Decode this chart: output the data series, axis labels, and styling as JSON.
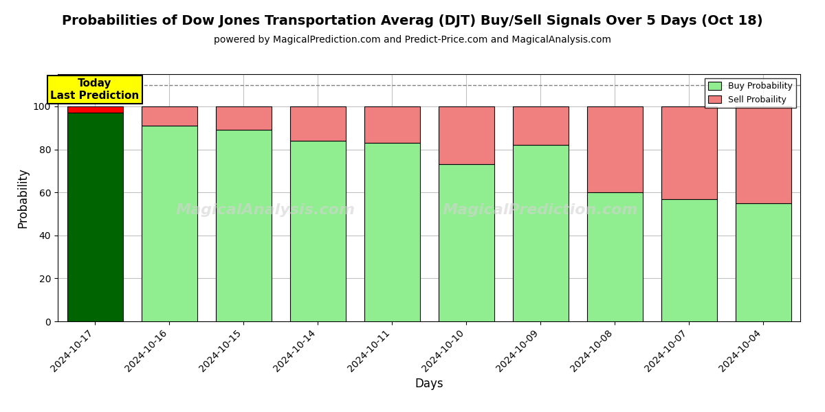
{
  "title": "Probabilities of Dow Jones Transportation Averag (DJT) Buy/Sell Signals Over 5 Days (Oct 18)",
  "subtitle": "powered by MagicalPrediction.com and Predict-Price.com and MagicalAnalysis.com",
  "xlabel": "Days",
  "ylabel": "Probability",
  "watermark1": "MagicalAnalysis.com",
  "watermark2": "MagicalPrediction.com",
  "dates": [
    "2024-10-17",
    "2024-10-16",
    "2024-10-15",
    "2024-10-14",
    "2024-10-11",
    "2024-10-10",
    "2024-10-09",
    "2024-10-08",
    "2024-10-07",
    "2024-10-04"
  ],
  "buy_values": [
    97,
    91,
    89,
    84,
    83,
    73,
    82,
    60,
    57,
    55
  ],
  "sell_values": [
    3,
    9,
    11,
    16,
    17,
    27,
    18,
    40,
    43,
    45
  ],
  "today_bar_index": 0,
  "today_bar_buy_color": "#006400",
  "today_bar_sell_color": "#FF0000",
  "normal_buy_color": "#90EE90",
  "normal_sell_color": "#F08080",
  "dashed_line_y": 110,
  "ylim": [
    0,
    115
  ],
  "yticks": [
    0,
    20,
    40,
    60,
    80,
    100
  ],
  "legend_buy_label": "Buy Probability",
  "legend_sell_label": "Sell Probaility",
  "today_label_line1": "Today",
  "today_label_line2": "Last Prediction",
  "today_box_facecolor": "#FFFF00",
  "today_box_edgecolor": "#000000",
  "bar_edgecolor": "#000000",
  "grid_color": "#c0c0c0",
  "background_color": "#ffffff",
  "title_fontsize": 14,
  "subtitle_fontsize": 10,
  "axis_label_fontsize": 12,
  "tick_fontsize": 10,
  "bar_width": 0.75
}
